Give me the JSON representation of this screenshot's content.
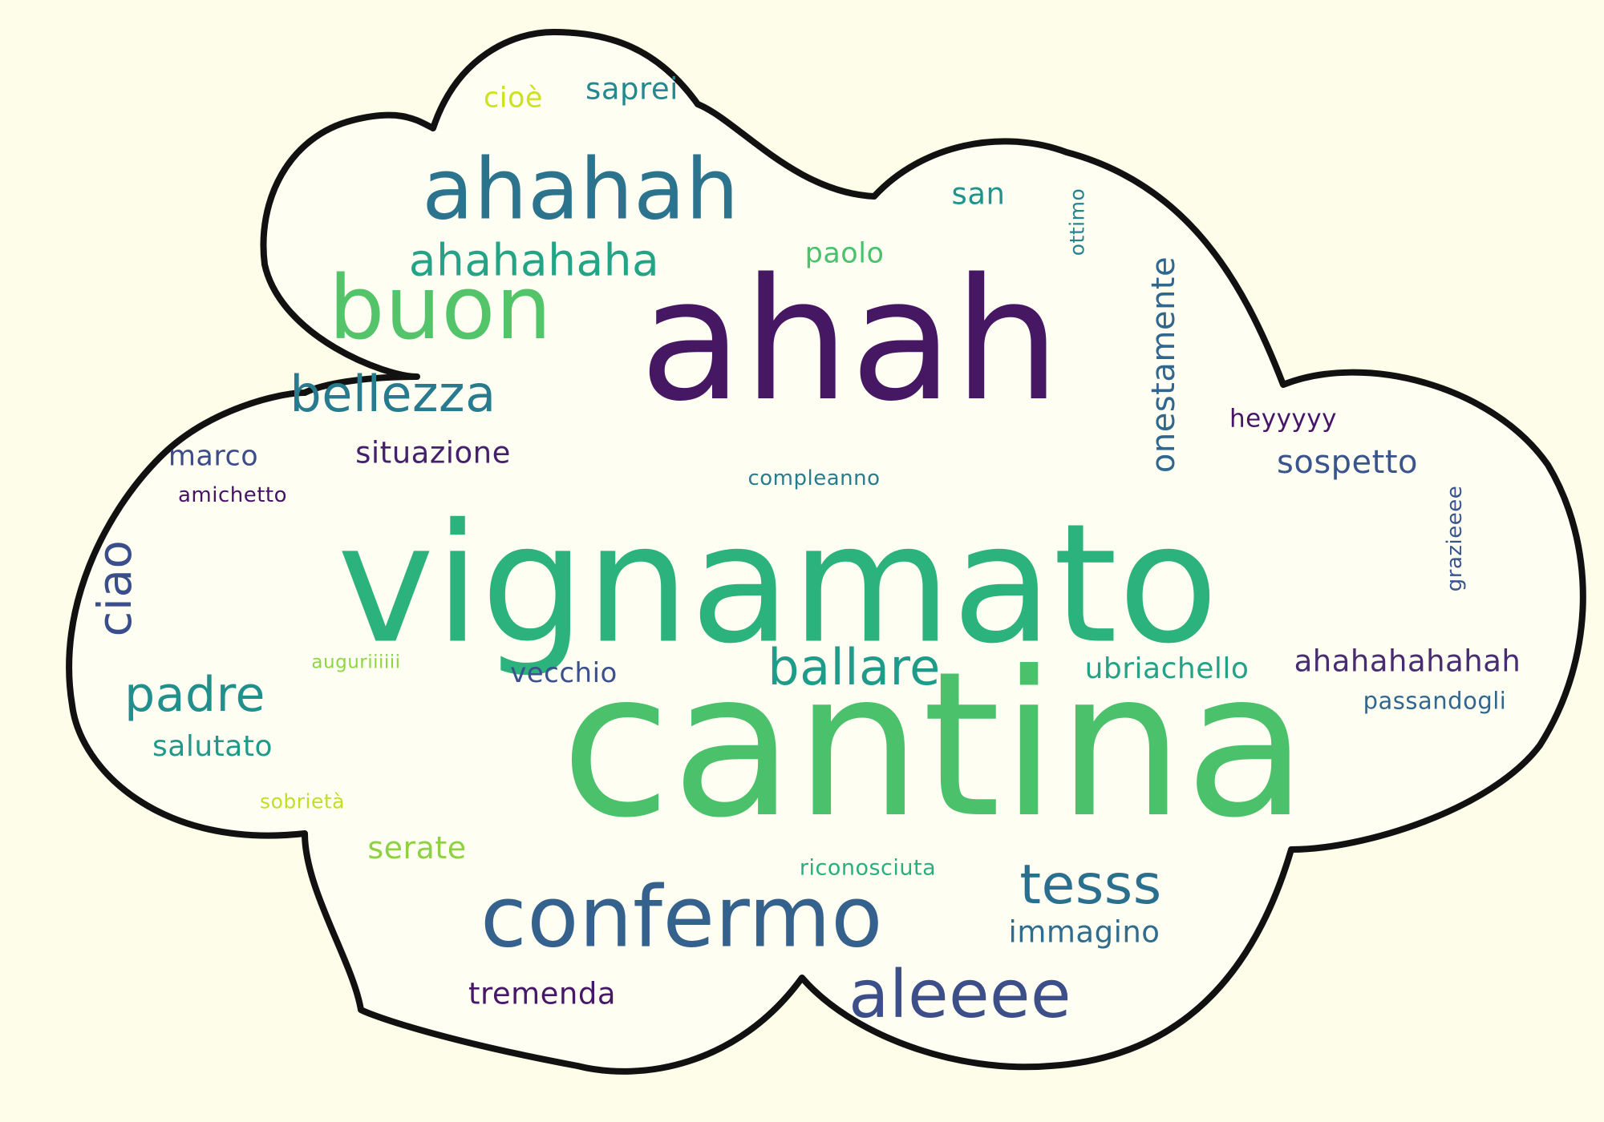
{
  "words": [
    {
      "text": "cantina",
      "color": "#4cc16c"
    },
    {
      "text": "vignamato",
      "color": "#2cb27c"
    },
    {
      "text": "ahah",
      "color": "#461763"
    },
    {
      "text": "ahahah",
      "color": "#2c738e"
    },
    {
      "text": "confermo",
      "color": "#35618d"
    },
    {
      "text": "buon",
      "color": "#53c469"
    },
    {
      "text": "aleeee",
      "color": "#3d4f89"
    },
    {
      "text": "ahahahaha",
      "color": "#24a487"
    },
    {
      "text": "bellezza",
      "color": "#287a8e"
    },
    {
      "text": "tesss",
      "color": "#2a6f8e"
    },
    {
      "text": "padre",
      "color": "#21908d"
    },
    {
      "text": "ballare",
      "color": "#1f9c89"
    },
    {
      "text": "ciao",
      "color": "#3a4e8c"
    },
    {
      "text": "onestamente",
      "color": "#30678e"
    },
    {
      "text": "situazione",
      "color": "#44216c"
    },
    {
      "text": "sospetto",
      "color": "#3a548c"
    },
    {
      "text": "ahahahahahah",
      "color": "#482c72"
    },
    {
      "text": "immagino",
      "color": "#2f6c8e"
    },
    {
      "text": "tremenda",
      "color": "#471868"
    },
    {
      "text": "ubriachello",
      "color": "#24a288"
    },
    {
      "text": "salutato",
      "color": "#1f9a8a"
    },
    {
      "text": "vecchio",
      "color": "#3b508c"
    },
    {
      "text": "serate",
      "color": "#8fd144"
    },
    {
      "text": "marco",
      "color": "#3c4d8a"
    },
    {
      "text": "saprei",
      "color": "#23898e"
    },
    {
      "text": "san",
      "color": "#1f948c"
    },
    {
      "text": "paolo",
      "color": "#4ac16d"
    },
    {
      "text": "cioè",
      "color": "#cde11d"
    },
    {
      "text": "heyyyyy",
      "color": "#46156a"
    },
    {
      "text": "passandogli",
      "color": "#31678e"
    },
    {
      "text": "riconosciuta",
      "color": "#29af7f"
    },
    {
      "text": "sobrietà",
      "color": "#c2df23"
    },
    {
      "text": "compleanno",
      "color": "#287c8e"
    },
    {
      "text": "amichetto",
      "color": "#471365"
    },
    {
      "text": "auguriiiiii",
      "color": "#8ed645"
    },
    {
      "text": "ottimo",
      "color": "#26828e"
    },
    {
      "text": "grazieeee",
      "color": "#3a548c"
    }
  ],
  "colors": {
    "background": "#fdfde9",
    "cloud_fill": "#fefef3",
    "cloud_outline": "#111111"
  }
}
